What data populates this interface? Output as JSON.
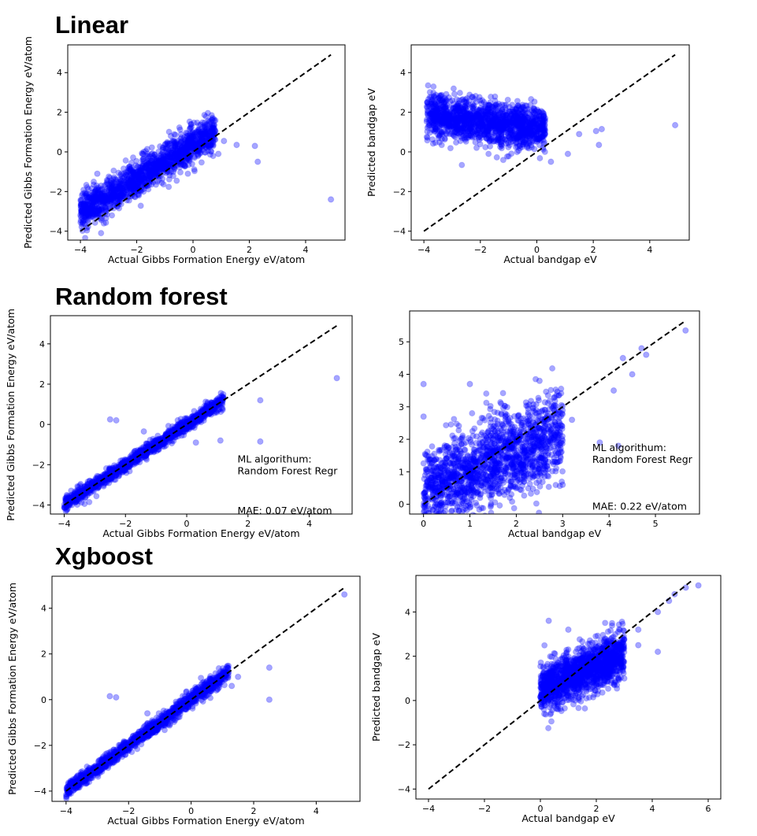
{
  "section_titles": {
    "linear": "Linear",
    "random_forest": "Random forest",
    "xgboost": "Xgboost"
  },
  "colors": {
    "point": "#0000ff",
    "diagonal": "#000000",
    "frame": "#000000"
  },
  "chart_data": [
    {
      "id": "linear-gibbs",
      "type": "scatter",
      "xlabel": "Actual Gibbs Formation Energy eV/atom",
      "ylabel": "Predicted Gibbs Formation Energy eV/atom",
      "xlim": [
        -4.45,
        5.4
      ],
      "ylim": [
        -4.45,
        5.4
      ],
      "xticks": [
        -4,
        -2,
        0,
        2,
        4
      ],
      "yticks": [
        -4,
        -2,
        0,
        2,
        4
      ],
      "diagonal": [
        -4,
        4.9
      ],
      "cloud": {
        "xrange": [
          -4.0,
          0.8
        ],
        "slope": 0.85,
        "offset": 0.35,
        "spread": 0.45,
        "count": 1500
      },
      "outliers": [
        [
          1.55,
          0.35
        ],
        [
          2.2,
          0.3
        ],
        [
          2.3,
          -0.5
        ],
        [
          4.9,
          -2.4
        ],
        [
          1.1,
          0.55
        ],
        [
          -3.4,
          -1.1
        ],
        [
          0.9,
          -0.1
        ]
      ]
    },
    {
      "id": "linear-bandgap",
      "type": "scatter",
      "xlabel": "Actual bandgap eV",
      "ylabel": "Predicted bandgap eV",
      "xlim": [
        -4.45,
        5.4
      ],
      "ylim": [
        -4.45,
        5.4
      ],
      "xticks": [
        -4,
        -2,
        0,
        2,
        4
      ],
      "yticks": [
        -4,
        -2,
        0,
        2,
        4
      ],
      "diagonal": [
        -4,
        4.9
      ],
      "cloud": {
        "xrange": [
          -3.9,
          0.3
        ],
        "slope": -0.15,
        "offset": 1.2,
        "spread": 0.55,
        "count": 1500
      },
      "outliers": [
        [
          1.5,
          0.9
        ],
        [
          2.2,
          0.35
        ],
        [
          2.3,
          1.15
        ],
        [
          4.9,
          1.35
        ],
        [
          2.1,
          1.05
        ],
        [
          1.1,
          -0.1
        ],
        [
          0.5,
          -0.5
        ]
      ]
    },
    {
      "id": "rf-gibbs",
      "type": "scatter",
      "xlabel": "Actual Gibbs Formation Energy eV/atom",
      "ylabel": "Predicted Gibbs Formation Energy eV/atom",
      "xlim": [
        -4.45,
        5.4
      ],
      "ylim": [
        -4.45,
        5.4
      ],
      "xticks": [
        -4,
        -2,
        0,
        2,
        4
      ],
      "yticks": [
        -4,
        -2,
        0,
        2,
        4
      ],
      "diagonal": [
        -4,
        4.9
      ],
      "cloud": {
        "xrange": [
          -4.0,
          1.2
        ],
        "slope": 1.0,
        "offset": 0.0,
        "spread": 0.17,
        "count": 1300
      },
      "outliers": [
        [
          4.9,
          2.3
        ],
        [
          1.1,
          -0.8
        ],
        [
          2.4,
          1.2
        ],
        [
          2.4,
          -0.85
        ],
        [
          -2.5,
          0.25
        ],
        [
          -2.3,
          0.2
        ],
        [
          -1.4,
          -0.35
        ],
        [
          0.3,
          -0.9
        ]
      ],
      "annotation": [
        "ML algorithum:",
        "Random Forest Regr",
        "MAE: 0.07 eV/atom"
      ]
    },
    {
      "id": "rf-bandgap",
      "type": "scatter",
      "xlabel": "Actual bandgap eV",
      "ylabel": "",
      "xlim": [
        -0.3,
        5.95
      ],
      "ylim": [
        -0.3,
        5.95
      ],
      "xticks": [
        0,
        1,
        2,
        3,
        4,
        5
      ],
      "yticks": [
        0,
        1,
        2,
        3,
        4,
        5
      ],
      "diagonal": [
        0,
        5.65
      ],
      "cloud": {
        "xrange": [
          0,
          3.0
        ],
        "slope": 0.6,
        "offset": 0.4,
        "spread": 0.65,
        "count": 1700
      },
      "outliers": [
        [
          5.65,
          5.35
        ],
        [
          4.7,
          4.8
        ],
        [
          4.3,
          4.5
        ],
        [
          4.1,
          3.5
        ],
        [
          3.8,
          1.9
        ],
        [
          4.2,
          1.8
        ],
        [
          0.0,
          3.7
        ],
        [
          1.0,
          3.7
        ],
        [
          2.5,
          3.8
        ],
        [
          3.2,
          2.6
        ],
        [
          4.5,
          4.0
        ],
        [
          3.0,
          0.6
        ],
        [
          0.0,
          2.7
        ],
        [
          4.8,
          4.6
        ]
      ],
      "annotation": [
        "ML algorithum:",
        "Random Forest Regr",
        "MAE: 0.22 eV/atom"
      ]
    },
    {
      "id": "xgb-gibbs",
      "type": "scatter",
      "xlabel": "Actual Gibbs Formation Energy eV/atom",
      "ylabel": "Predicted Gibbs Formation Energy eV/atom",
      "xlim": [
        -4.45,
        5.4
      ],
      "ylim": [
        -4.45,
        5.4
      ],
      "xticks": [
        -4,
        -2,
        0,
        2,
        4
      ],
      "yticks": [
        -4,
        -2,
        0,
        2,
        4
      ],
      "diagonal": [
        -4,
        4.9
      ],
      "cloud": {
        "xrange": [
          -4.0,
          1.2
        ],
        "slope": 1.0,
        "offset": 0.0,
        "spread": 0.16,
        "count": 1300
      },
      "outliers": [
        [
          4.9,
          4.6
        ],
        [
          2.5,
          1.4
        ],
        [
          2.5,
          0.0
        ],
        [
          1.5,
          1.0
        ],
        [
          -2.6,
          0.15
        ],
        [
          -2.4,
          0.1
        ],
        [
          -1.4,
          -0.6
        ],
        [
          1.3,
          0.6
        ]
      ]
    },
    {
      "id": "xgb-bandgap",
      "type": "scatter",
      "xlabel": "Actual bandgap eV",
      "ylabel": "Predicted bandgap eV",
      "xlim": [
        -4.45,
        6.45
      ],
      "ylim": [
        -4.45,
        5.65
      ],
      "xticks": [
        -4,
        -2,
        0,
        2,
        4,
        6
      ],
      "yticks": [
        -4,
        -2,
        0,
        2,
        4
      ],
      "diagonal": [
        -4,
        5.4
      ],
      "cloud": {
        "xrange": [
          0,
          3.0
        ],
        "slope": 0.55,
        "offset": 0.5,
        "spread": 0.55,
        "count": 1500
      },
      "outliers": [
        [
          5.65,
          5.2
        ],
        [
          5.2,
          5.1
        ],
        [
          4.8,
          4.8
        ],
        [
          4.2,
          4.0
        ],
        [
          3.5,
          3.2
        ],
        [
          4.2,
          2.2
        ],
        [
          3.5,
          2.5
        ],
        [
          0.3,
          3.6
        ],
        [
          1.0,
          3.2
        ],
        [
          3.0,
          1.0
        ],
        [
          4.6,
          4.5
        ]
      ]
    }
  ]
}
